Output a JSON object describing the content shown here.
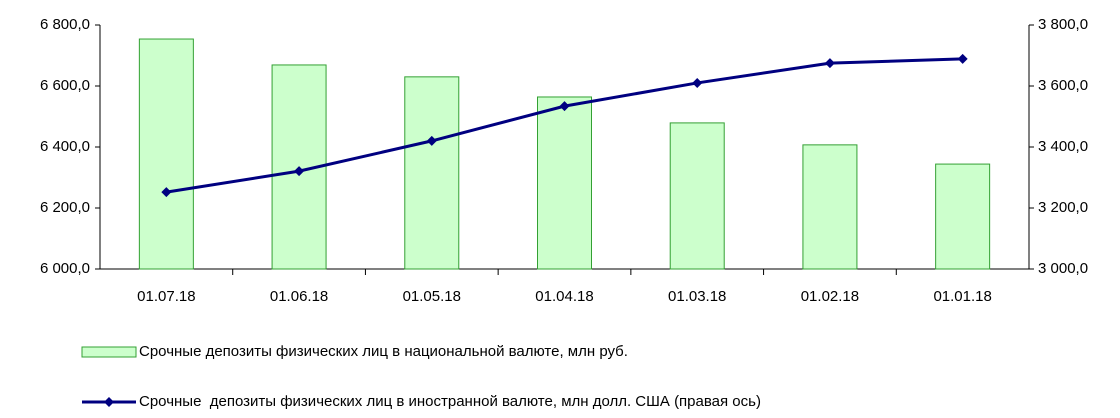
{
  "chart_data": {
    "type": "bar_line",
    "categories": [
      "01.07.18",
      "01.06.18",
      "01.05.18",
      "01.04.18",
      "01.03.18",
      "01.02.18",
      "01.01.18"
    ],
    "series": [
      {
        "name": "Срочные депозиты физических лиц в национальной валюте, млн руб.",
        "type": "bar",
        "color": "#ccffcc",
        "values": [
          6754,
          6669,
          6630,
          6564,
          6479,
          6407,
          6344
        ]
      },
      {
        "name": "Срочные  депозиты физических лиц в иностранной валюте, млн долл. США (правая ось)",
        "type": "line",
        "axis": "y2",
        "color": "#000080",
        "values": [
          3252,
          3321,
          3420,
          3534,
          3610,
          3675,
          3689
        ]
      }
    ],
    "ylim": [
      6000,
      6800
    ],
    "yticks": [
      {
        "value": 6000,
        "label": "6 000,0"
      },
      {
        "value": 6200,
        "label": "6 200,0"
      },
      {
        "value": 6400,
        "label": "6 400,0"
      },
      {
        "value": 6600,
        "label": "6 600,0"
      },
      {
        "value": 6800,
        "label": "6 800,0"
      }
    ],
    "y2lim": [
      3000,
      3800
    ],
    "y2ticks": [
      {
        "value": 3000,
        "label": "3 000,0"
      },
      {
        "value": 3200,
        "label": "3 200,0"
      },
      {
        "value": 3400,
        "label": "3 400,0"
      },
      {
        "value": 3600,
        "label": "3 600,0"
      },
      {
        "value": 3800,
        "label": "3 800,0"
      }
    ],
    "grid": false,
    "legend": "bottom"
  }
}
